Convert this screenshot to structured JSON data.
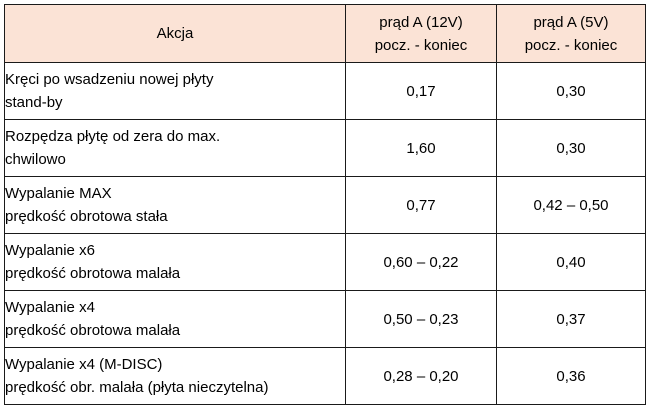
{
  "table": {
    "header": {
      "action": "Akcja",
      "col12v_title": "prąd A (12V)",
      "col12v_sub": "pocz. - koniec",
      "col5v_title": "prąd A (5V)",
      "col5v_sub": "pocz. - koniec"
    },
    "rows": [
      {
        "line1": "Kręci po wsadzeniu nowej płyty",
        "line2": "stand-by",
        "v12": "0,17",
        "v5": "0,30"
      },
      {
        "line1": "Rozpędza płytę od zera do max.",
        "line2": "chwilowo",
        "v12": "1,60",
        "v5": "0,30"
      },
      {
        "line1": "Wypalanie MAX",
        "line2": "prędkość obrotowa stała",
        "v12": "0,77",
        "v5": "0,42 – 0,50"
      },
      {
        "line1": "Wypalanie x6",
        "line2": "prędkość obrotowa malała",
        "v12": "0,60 – 0,22",
        "v5": "0,40"
      },
      {
        "line1": "Wypalanie x4",
        "line2": "prędkość obrotowa malała",
        "v12": "0,50 – 0,23",
        "v5": "0,37"
      },
      {
        "line1": "Wypalanie x4 (M-DISC)",
        "line2": "prędkość obr. malała (płyta nieczytelna)",
        "v12": "0,28 – 0,20",
        "v5": "0,36"
      }
    ]
  }
}
